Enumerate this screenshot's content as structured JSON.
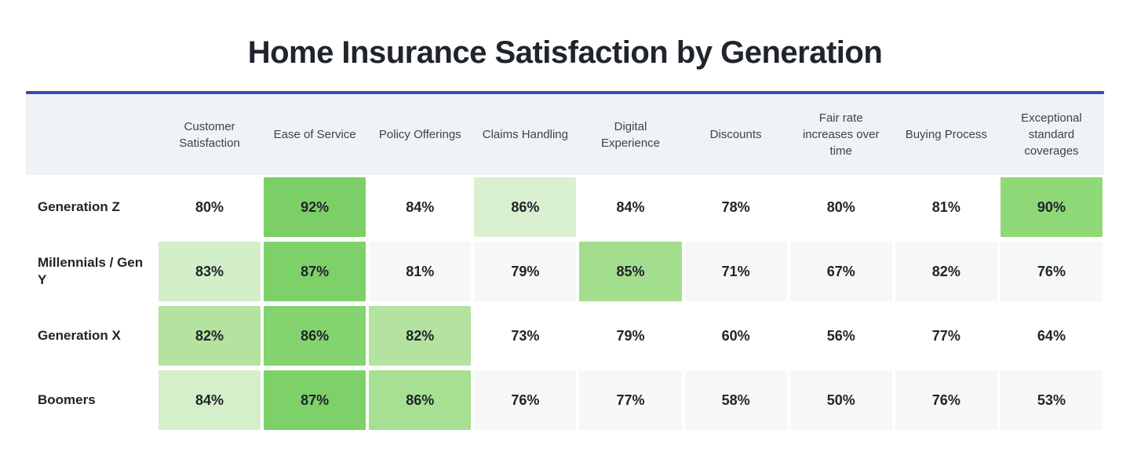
{
  "title": "Home Insurance Satisfaction by Generation",
  "theme": {
    "accent_line_color": "#3b49b5",
    "header_bg": "#eff3f8",
    "stripe_bg": "#f6f7f7",
    "text_color": "#20242b",
    "header_text_color": "#3d434c"
  },
  "chart_data": {
    "type": "heatmap",
    "title": "Home Insurance Satisfaction by Generation",
    "unit": "%",
    "columns": [
      "Customer Satisfaction",
      "Ease of Service",
      "Policy Offerings",
      "Claims Handling",
      "Digital Experience",
      "Discounts",
      "Fair rate increases over time",
      "Buying Process",
      "Exceptional standard coverages"
    ],
    "rows": [
      {
        "label": "Generation Z",
        "values": [
          80,
          92,
          84,
          86,
          84,
          78,
          80,
          81,
          90
        ]
      },
      {
        "label": "Millennials / Gen Y",
        "values": [
          83,
          87,
          81,
          79,
          85,
          71,
          67,
          82,
          76
        ]
      },
      {
        "label": "Generation X",
        "values": [
          82,
          86,
          82,
          73,
          79,
          60,
          56,
          77,
          64
        ]
      },
      {
        "label": "Boomers",
        "values": [
          84,
          87,
          86,
          76,
          77,
          58,
          50,
          76,
          53
        ]
      }
    ],
    "highlight_rule": "top three values in each row shaded green, darker = higher rank",
    "cell_colors": [
      [
        null,
        "#7ccf67",
        null,
        "#d9f0d0",
        null,
        null,
        null,
        null,
        "#8ed877"
      ],
      [
        "#d4eeca",
        "#7ed168",
        null,
        null,
        "#a3dd8e",
        null,
        null,
        null,
        null
      ],
      [
        "#b3e39f",
        "#83d36e",
        "#b3e39f",
        null,
        null,
        null,
        null,
        null,
        null
      ],
      [
        "#d5efca",
        "#7ed168",
        "#a7df93",
        null,
        null,
        null,
        null,
        null,
        null
      ]
    ],
    "striped_row_indices": [
      1,
      3
    ]
  }
}
